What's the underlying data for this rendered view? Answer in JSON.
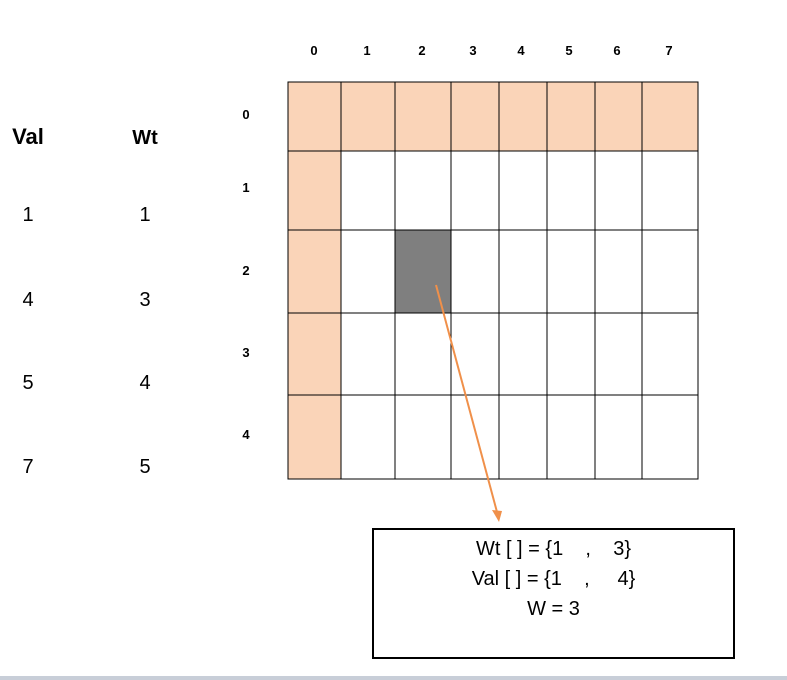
{
  "grid": {
    "column_indices": [
      "0",
      "1",
      "2",
      "3",
      "4",
      "5",
      "6",
      "7"
    ],
    "row_indices": [
      "0",
      "1",
      "2",
      "3",
      "4"
    ],
    "initialized_row": 0,
    "initialized_column": 0,
    "highlighted_cell": {
      "row": 2,
      "col": 2
    },
    "fill_color": "#fad4b8",
    "highlight_color": "#7f7f7f",
    "border_color": "#000000",
    "arrow_color": "#f0904a"
  },
  "items": {
    "val_header": "Val",
    "wt_header": "Wt",
    "val": [
      "1",
      "4",
      "5",
      "7"
    ],
    "wt": [
      "1",
      "3",
      "4",
      "5"
    ]
  },
  "info_box": {
    "line1": "Wt [ ] = {1    ,    3}",
    "line2": "Val [ ] = {1    ,     4}",
    "line3": "W = 3"
  }
}
